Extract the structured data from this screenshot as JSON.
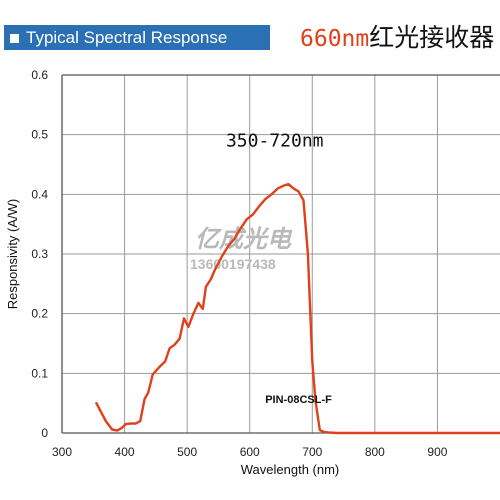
{
  "header": {
    "section_title": "Typical Spectral Response",
    "product_title_part1": "660nm",
    "product_title_part2": "红光接收器"
  },
  "watermark": {
    "brand": "亿成光电",
    "phone": "13600197438"
  },
  "chart_data": {
    "type": "line",
    "title": "",
    "xlabel": "Wavelength (nm)",
    "ylabel": "Responsivity (A/W)",
    "xlim": [
      300,
      1000
    ],
    "ylim": [
      0,
      0.6
    ],
    "x_ticks": [
      300,
      400,
      500,
      600,
      700,
      800,
      900
    ],
    "y_ticks": [
      0,
      0.1,
      0.2,
      0.3,
      0.4,
      0.5,
      0.6
    ],
    "y_tick_labels": [
      "0",
      "0.1",
      "0.2",
      "0.3",
      "0.4",
      "0.5",
      "0.6"
    ],
    "grid": true,
    "annotations": [
      {
        "text": "350-720nm",
        "x": 640,
        "y": 0.48
      },
      {
        "text": "PIN-08CSL-F",
        "x": 678,
        "y": 0.05
      }
    ],
    "series": [
      {
        "color": "#e0401a",
        "x": [
          355,
          370,
          380,
          388,
          395,
          402,
          410,
          418,
          425,
          432,
          438,
          445,
          455,
          465,
          472,
          480,
          488,
          495,
          502,
          510,
          518,
          525,
          530,
          538,
          545,
          555,
          565,
          575,
          585,
          595,
          605,
          615,
          625,
          635,
          645,
          655,
          662,
          670,
          678,
          686,
          693,
          700,
          705,
          712,
          718,
          725,
          740,
          800,
          900,
          1000
        ],
        "y": [
          0.05,
          0.02,
          0.006,
          0.004,
          0.008,
          0.015,
          0.016,
          0.016,
          0.02,
          0.057,
          0.068,
          0.098,
          0.11,
          0.12,
          0.142,
          0.148,
          0.158,
          0.192,
          0.178,
          0.2,
          0.218,
          0.208,
          0.245,
          0.258,
          0.275,
          0.295,
          0.312,
          0.325,
          0.342,
          0.358,
          0.366,
          0.38,
          0.392,
          0.4,
          0.41,
          0.415,
          0.417,
          0.41,
          0.405,
          0.39,
          0.3,
          0.12,
          0.055,
          0.005,
          0.002,
          0.001,
          0.0,
          0.0,
          0.0,
          0.0
        ]
      }
    ]
  }
}
